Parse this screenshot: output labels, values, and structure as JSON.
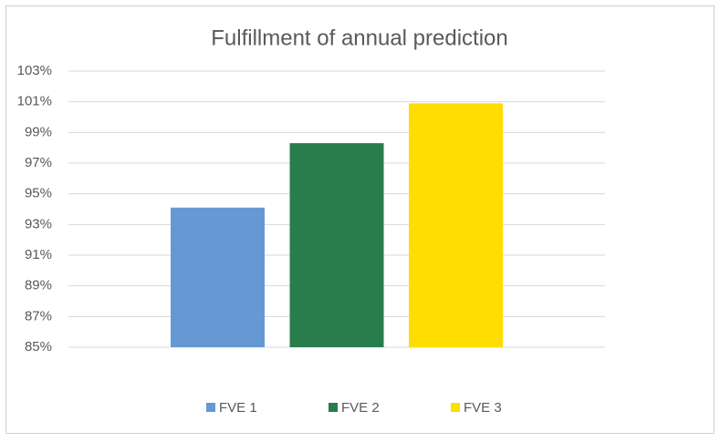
{
  "chart_data": {
    "type": "bar",
    "title": "Fulfillment of annual prediction",
    "categories": [
      null
    ],
    "series": [
      {
        "name": "FVE 1",
        "color": "#6699d3",
        "values": [
          94.1
        ]
      },
      {
        "name": "FVE 2",
        "color": "#297c4c",
        "values": [
          98.3
        ]
      },
      {
        "name": "FVE 3",
        "color": "#ffdd00",
        "values": [
          100.9
        ]
      }
    ],
    "ylim": [
      85,
      103
    ],
    "yticks": [
      {
        "value": 85,
        "label": "85%"
      },
      {
        "value": 87,
        "label": "87%"
      },
      {
        "value": 89,
        "label": "89%"
      },
      {
        "value": 91,
        "label": "91%"
      },
      {
        "value": 93,
        "label": "93%"
      },
      {
        "value": 95,
        "label": "95%"
      },
      {
        "value": 97,
        "label": "97%"
      },
      {
        "value": 99,
        "label": "99%"
      },
      {
        "value": 101,
        "label": "101%"
      },
      {
        "value": 103,
        "label": "103%"
      }
    ],
    "grid": true,
    "legend": "bottom"
  }
}
